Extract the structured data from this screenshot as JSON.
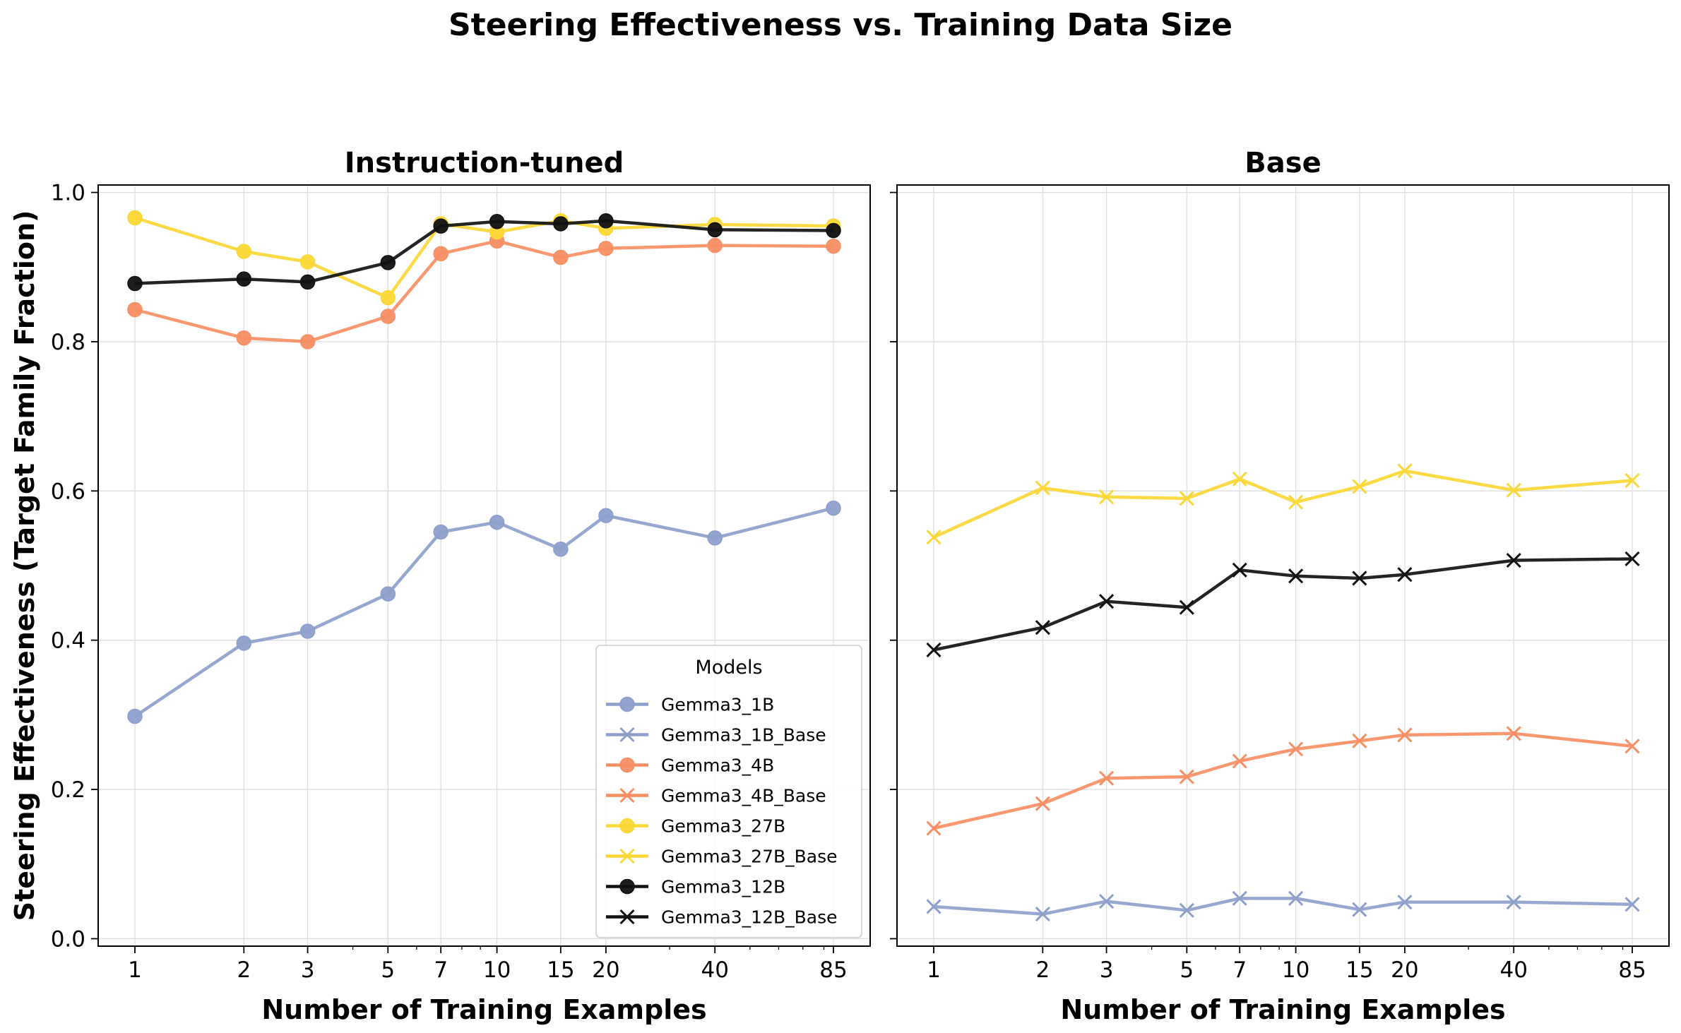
{
  "figure_title": "Steering Effectiveness vs. Training Data Size",
  "chart_data": [
    {
      "type": "line",
      "title": "Instruction-tuned",
      "xlabel": "Number of Training Examples",
      "ylabel": "Steering Effectiveness (Target Family Fraction)",
      "xscale": "log",
      "x": [
        1,
        2,
        3,
        5,
        7,
        10,
        15,
        20,
        40,
        85
      ],
      "xticklabels": [
        "1",
        "2",
        "3",
        "5",
        "7",
        "10",
        "15",
        "20",
        "40",
        "85"
      ],
      "ylim": [
        -0.01,
        1.01
      ],
      "yticks": [
        0.0,
        0.2,
        0.4,
        0.6,
        0.8,
        1.0
      ],
      "yticklabels": [
        "0.0",
        "0.2",
        "0.4",
        "0.6",
        "0.8",
        "1.0"
      ],
      "grid": true,
      "legend": {
        "title": "Models",
        "placement": "lower-right",
        "entries": [
          {
            "label": "Gemma3_1B",
            "color": "#8e9fcc",
            "marker": "circle"
          },
          {
            "label": "Gemma3_1B_Base",
            "color": "#8e9fcc",
            "marker": "x"
          },
          {
            "label": "Gemma3_4B",
            "color": "#f78e64",
            "marker": "circle"
          },
          {
            "label": "Gemma3_4B_Base",
            "color": "#f78e64",
            "marker": "x"
          },
          {
            "label": "Gemma3_27B",
            "color": "#fbd835",
            "marker": "circle"
          },
          {
            "label": "Gemma3_27B_Base",
            "color": "#fbd835",
            "marker": "x"
          },
          {
            "label": "Gemma3_12B",
            "color": "#111111",
            "marker": "circle"
          },
          {
            "label": "Gemma3_12B_Base",
            "color": "#111111",
            "marker": "x"
          }
        ]
      },
      "series": [
        {
          "name": "Gemma3_1B",
          "color": "#8e9fcc",
          "marker": "circle",
          "values": [
            0.298,
            0.396,
            0.412,
            0.462,
            0.545,
            0.558,
            0.522,
            0.567,
            0.537,
            0.577
          ]
        },
        {
          "name": "Gemma3_4B",
          "color": "#f78e64",
          "marker": "circle",
          "values": [
            0.843,
            0.805,
            0.8,
            0.834,
            0.918,
            0.935,
            0.913,
            0.925,
            0.929,
            0.928
          ]
        },
        {
          "name": "Gemma3_27B",
          "color": "#fbd835",
          "marker": "circle",
          "values": [
            0.966,
            0.921,
            0.907,
            0.859,
            0.958,
            0.947,
            0.962,
            0.952,
            0.957,
            0.955
          ]
        },
        {
          "name": "Gemma3_12B",
          "color": "#111111",
          "marker": "circle",
          "values": [
            0.878,
            0.884,
            0.88,
            0.906,
            0.955,
            0.961,
            0.958,
            0.962,
            0.95,
            0.949
          ]
        }
      ]
    },
    {
      "type": "line",
      "title": "Base",
      "xlabel": "Number of Training Examples",
      "ylabel": "",
      "xscale": "log",
      "x": [
        1,
        2,
        3,
        5,
        7,
        10,
        15,
        20,
        40,
        85
      ],
      "xticklabels": [
        "1",
        "2",
        "3",
        "5",
        "7",
        "10",
        "15",
        "20",
        "40",
        "85"
      ],
      "ylim": [
        -0.01,
        1.01
      ],
      "yticks": [
        0.0,
        0.2,
        0.4,
        0.6,
        0.8,
        1.0
      ],
      "yticklabels": [],
      "grid": true,
      "series": [
        {
          "name": "Gemma3_1B_Base",
          "color": "#8e9fcc",
          "marker": "x",
          "values": [
            0.043,
            0.033,
            0.05,
            0.038,
            0.054,
            0.054,
            0.039,
            0.049,
            0.049,
            0.046
          ]
        },
        {
          "name": "Gemma3_4B_Base",
          "color": "#f78e64",
          "marker": "x",
          "values": [
            0.148,
            0.181,
            0.215,
            0.217,
            0.238,
            0.254,
            0.265,
            0.273,
            0.275,
            0.258
          ]
        },
        {
          "name": "Gemma3_27B_Base",
          "color": "#fbd835",
          "marker": "x",
          "values": [
            0.538,
            0.604,
            0.592,
            0.59,
            0.616,
            0.585,
            0.606,
            0.627,
            0.601,
            0.614
          ]
        },
        {
          "name": "Gemma3_12B_Base",
          "color": "#111111",
          "marker": "x",
          "values": [
            0.387,
            0.417,
            0.452,
            0.444,
            0.494,
            0.486,
            0.483,
            0.488,
            0.507,
            0.509
          ]
        }
      ]
    }
  ]
}
